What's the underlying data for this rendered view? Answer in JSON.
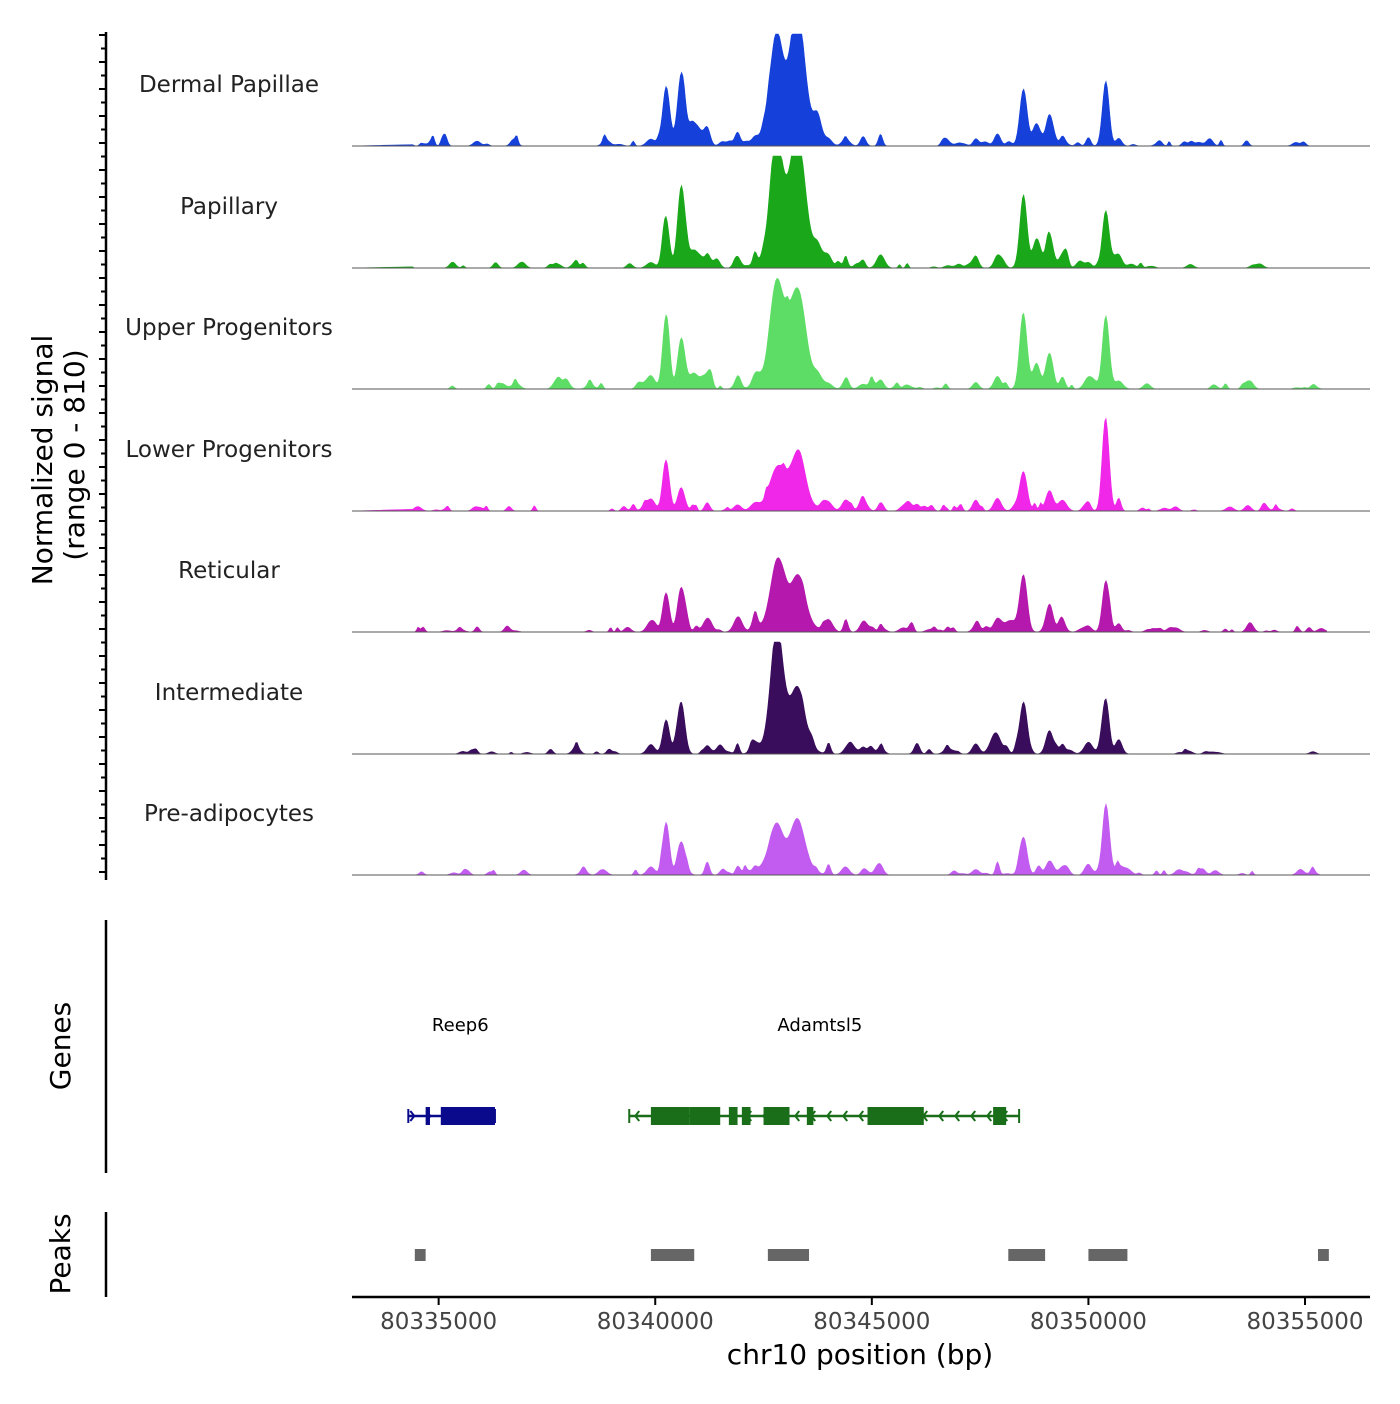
{
  "chart_data": {
    "type": "area",
    "title": "",
    "signal_axis_label": "Normalized signal",
    "signal_axis_range_label": "(range 0 - 810)",
    "signal_range": [
      0,
      810
    ],
    "xlabel": "chr10 position (bp)",
    "xlim": [
      80333000,
      80356500
    ],
    "x_ticks": [
      80335000,
      80340000,
      80345000,
      80350000,
      80355000
    ],
    "x_tick_labels": [
      "80335000",
      "80340000",
      "80345000",
      "80350000",
      "80355000"
    ],
    "track_panel_label_genes": "Genes",
    "track_panel_label_peaks": "Peaks",
    "peak_shape_centers": [
      80334800,
      80340500,
      80342900,
      80343300,
      80348500,
      80349100,
      80350400
    ],
    "series": [
      {
        "name": "Dermal Papillae",
        "color": "#1540D9",
        "peaks": [
          {
            "pos": 80340250,
            "height": 0.48,
            "width": 110
          },
          {
            "pos": 80340600,
            "height": 0.63,
            "width": 120
          },
          {
            "pos": 80340900,
            "height": 0.18,
            "width": 200
          },
          {
            "pos": 80342800,
            "height": 0.7,
            "width": 200
          },
          {
            "pos": 80343300,
            "height": 0.88,
            "width": 230
          },
          {
            "pos": 80343050,
            "height": 0.35,
            "width": 500
          },
          {
            "pos": 80343750,
            "height": 0.18,
            "width": 140
          },
          {
            "pos": 80348500,
            "height": 0.48,
            "width": 120
          },
          {
            "pos": 80348800,
            "height": 0.2,
            "width": 120
          },
          {
            "pos": 80349100,
            "height": 0.26,
            "width": 120
          },
          {
            "pos": 80350400,
            "height": 0.55,
            "width": 110
          }
        ]
      },
      {
        "name": "Papillary",
        "color": "#1AA81A",
        "peaks": [
          {
            "pos": 80340250,
            "height": 0.4,
            "width": 110
          },
          {
            "pos": 80340600,
            "height": 0.68,
            "width": 120
          },
          {
            "pos": 80340900,
            "height": 0.16,
            "width": 200
          },
          {
            "pos": 80342800,
            "height": 0.85,
            "width": 200
          },
          {
            "pos": 80343300,
            "height": 0.9,
            "width": 230
          },
          {
            "pos": 80343050,
            "height": 0.35,
            "width": 500
          },
          {
            "pos": 80343750,
            "height": 0.15,
            "width": 140
          },
          {
            "pos": 80348500,
            "height": 0.58,
            "width": 120
          },
          {
            "pos": 80348800,
            "height": 0.25,
            "width": 120
          },
          {
            "pos": 80349100,
            "height": 0.3,
            "width": 120
          },
          {
            "pos": 80350400,
            "height": 0.48,
            "width": 110
          }
        ]
      },
      {
        "name": "Upper Progenitors",
        "color": "#5EDD66",
        "peaks": [
          {
            "pos": 80340250,
            "height": 0.62,
            "width": 110
          },
          {
            "pos": 80340600,
            "height": 0.42,
            "width": 120
          },
          {
            "pos": 80340900,
            "height": 0.12,
            "width": 200
          },
          {
            "pos": 80342800,
            "height": 0.72,
            "width": 200
          },
          {
            "pos": 80343300,
            "height": 0.64,
            "width": 230
          },
          {
            "pos": 80343050,
            "height": 0.33,
            "width": 500
          },
          {
            "pos": 80343750,
            "height": 0.1,
            "width": 140
          },
          {
            "pos": 80348500,
            "height": 0.66,
            "width": 120
          },
          {
            "pos": 80348800,
            "height": 0.22,
            "width": 120
          },
          {
            "pos": 80349100,
            "height": 0.32,
            "width": 120
          },
          {
            "pos": 80350400,
            "height": 0.6,
            "width": 110
          }
        ]
      },
      {
        "name": "Lower Progenitors",
        "color": "#F026E8",
        "peaks": [
          {
            "pos": 80340250,
            "height": 0.45,
            "width": 110
          },
          {
            "pos": 80340600,
            "height": 0.2,
            "width": 120
          },
          {
            "pos": 80342800,
            "height": 0.25,
            "width": 220
          },
          {
            "pos": 80343300,
            "height": 0.35,
            "width": 230
          },
          {
            "pos": 80343050,
            "height": 0.18,
            "width": 500
          },
          {
            "pos": 80348500,
            "height": 0.35,
            "width": 120
          },
          {
            "pos": 80349100,
            "height": 0.18,
            "width": 120
          },
          {
            "pos": 80350400,
            "height": 0.75,
            "width": 110
          }
        ]
      },
      {
        "name": "Reticular",
        "color": "#B518AC",
        "peaks": [
          {
            "pos": 80340250,
            "height": 0.35,
            "width": 110
          },
          {
            "pos": 80340600,
            "height": 0.38,
            "width": 120
          },
          {
            "pos": 80342800,
            "height": 0.45,
            "width": 200
          },
          {
            "pos": 80343300,
            "height": 0.32,
            "width": 230
          },
          {
            "pos": 80343050,
            "height": 0.22,
            "width": 500
          },
          {
            "pos": 80348500,
            "height": 0.5,
            "width": 120
          },
          {
            "pos": 80348200,
            "height": 0.1,
            "width": 200
          },
          {
            "pos": 80349100,
            "height": 0.24,
            "width": 120
          },
          {
            "pos": 80350400,
            "height": 0.42,
            "width": 110
          }
        ]
      },
      {
        "name": "Intermediate",
        "color": "#3A0C5C",
        "peaks": [
          {
            "pos": 80340250,
            "height": 0.3,
            "width": 110
          },
          {
            "pos": 80340600,
            "height": 0.45,
            "width": 120
          },
          {
            "pos": 80342800,
            "height": 0.9,
            "width": 200
          },
          {
            "pos": 80343300,
            "height": 0.38,
            "width": 230
          },
          {
            "pos": 80343050,
            "height": 0.25,
            "width": 450
          },
          {
            "pos": 80348500,
            "height": 0.45,
            "width": 120
          },
          {
            "pos": 80347800,
            "height": 0.1,
            "width": 150
          },
          {
            "pos": 80349100,
            "height": 0.2,
            "width": 120
          },
          {
            "pos": 80350400,
            "height": 0.42,
            "width": 110
          }
        ]
      },
      {
        "name": "Pre-adipocytes",
        "color": "#C25BF0",
        "peaks": [
          {
            "pos": 80340250,
            "height": 0.45,
            "width": 110
          },
          {
            "pos": 80340600,
            "height": 0.25,
            "width": 120
          },
          {
            "pos": 80342800,
            "height": 0.32,
            "width": 200
          },
          {
            "pos": 80343300,
            "height": 0.36,
            "width": 230
          },
          {
            "pos": 80343050,
            "height": 0.15,
            "width": 500
          },
          {
            "pos": 80348500,
            "height": 0.32,
            "width": 120
          },
          {
            "pos": 80349100,
            "height": 0.12,
            "width": 120
          },
          {
            "pos": 80350400,
            "height": 0.6,
            "width": 110
          }
        ]
      }
    ],
    "genes": [
      {
        "name": "Reep6",
        "color": "#0A0A8C",
        "strand": "+",
        "start": 80334300,
        "end": 80336300,
        "exons": [
          [
            80335050,
            80336300
          ],
          [
            80334700,
            80334800
          ]
        ],
        "label_pos": 80335500
      },
      {
        "name": "Adamtsl5",
        "color": "#1A6E1A",
        "strand": "-",
        "start": 80339400,
        "end": 80348400,
        "exons": [
          [
            80339900,
            80340800
          ],
          [
            80340800,
            80341500
          ],
          [
            80341700,
            80341900
          ],
          [
            80342000,
            80342200
          ],
          [
            80342500,
            80343100
          ],
          [
            80343500,
            80343650
          ],
          [
            80344900,
            80345500
          ],
          [
            80345500,
            80346200
          ],
          [
            80347800,
            80348100
          ]
        ],
        "label_pos": 80343800
      }
    ],
    "peaks": [
      {
        "start": 80334450,
        "end": 80334700
      },
      {
        "start": 80339900,
        "end": 80340900
      },
      {
        "start": 80342600,
        "end": 80343550
      },
      {
        "start": 80348150,
        "end": 80349000
      },
      {
        "start": 80350000,
        "end": 80350900
      },
      {
        "start": 80355300,
        "end": 80355550
      }
    ]
  }
}
